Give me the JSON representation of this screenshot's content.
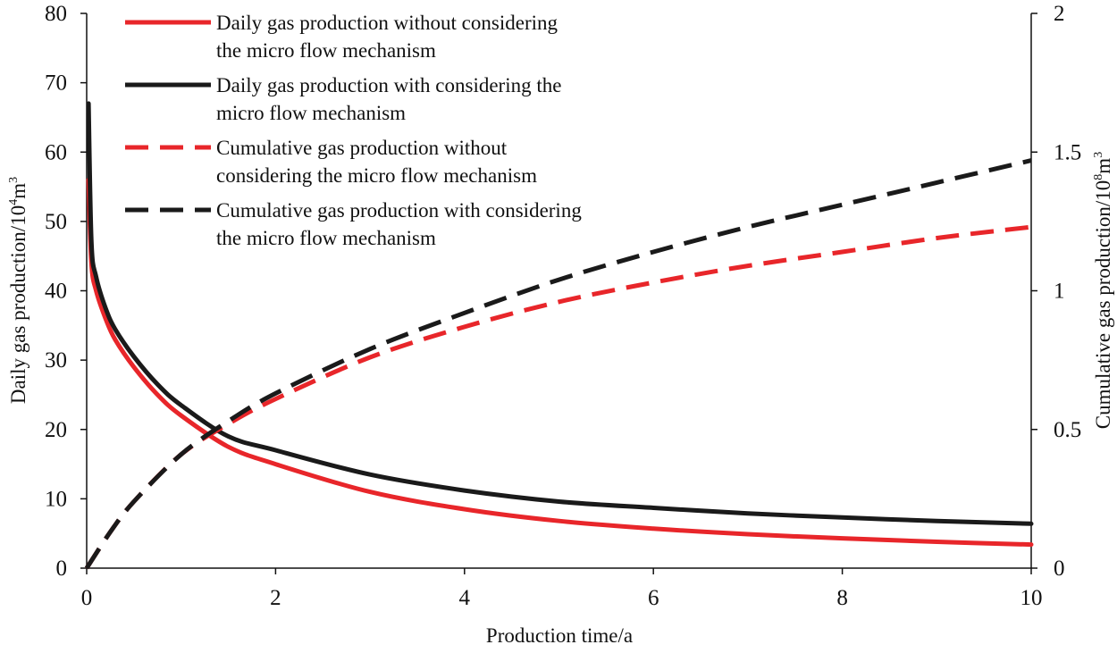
{
  "chart_data": {
    "type": "line",
    "title": "",
    "xlabel": "Production time/a",
    "ylabel": {
      "prefix": "Daily gas production/10",
      "sup1": "4",
      "mid": "m",
      "sup2": "3"
    },
    "y2label": {
      "prefix": "Cumulative gas production/10",
      "sup1": "8",
      "mid": "m",
      "sup2": "3"
    },
    "xlim": [
      0,
      10
    ],
    "ylim": [
      0,
      80
    ],
    "y2lim": [
      0,
      2
    ],
    "x_ticks": [
      "0",
      "2",
      "4",
      "6",
      "8",
      "10"
    ],
    "y_ticks": [
      "0",
      "10",
      "20",
      "30",
      "40",
      "50",
      "60",
      "70",
      "80"
    ],
    "y2_ticks": [
      "0",
      "0.5",
      "1",
      "1.5",
      "2"
    ],
    "legend_position": "top-left",
    "series": [
      {
        "name": "Daily gas production without considering the micro flow mechanism",
        "legend_lines": [
          "Daily gas production without considering",
          "the micro flow mechanism"
        ],
        "axis": "left",
        "color": "#e8262a",
        "dash": "solid",
        "x": [
          0.02,
          0.05,
          0.1,
          0.2,
          0.3,
          0.5,
          0.75,
          1.0,
          1.5,
          2.0,
          3.0,
          4.0,
          5.0,
          6.0,
          7.0,
          8.0,
          9.0,
          10.0
        ],
        "y": [
          56,
          44,
          40,
          36,
          33,
          29,
          25,
          22,
          17.5,
          15,
          11,
          8.5,
          6.8,
          5.7,
          4.9,
          4.3,
          3.8,
          3.4
        ]
      },
      {
        "name": "Daily gas production with considering the micro flow mechanism",
        "legend_lines": [
          "Daily gas production with considering the",
          "micro flow mechanism"
        ],
        "axis": "left",
        "color": "#1a1a1a",
        "dash": "solid",
        "x": [
          0.02,
          0.05,
          0.1,
          0.2,
          0.3,
          0.5,
          0.75,
          1.0,
          1.5,
          2.0,
          3.0,
          4.0,
          5.0,
          6.0,
          7.0,
          8.0,
          9.0,
          10.0
        ],
        "y": [
          67,
          47,
          42,
          37.5,
          34.5,
          30.5,
          26.5,
          23.5,
          19,
          17,
          13.5,
          11.2,
          9.6,
          8.7,
          7.9,
          7.3,
          6.8,
          6.4
        ]
      },
      {
        "name": "Cumulative gas production without considering the micro flow mechanism",
        "legend_lines": [
          "Cumulative gas production without",
          "considering the micro flow mechanism"
        ],
        "axis": "right",
        "color": "#e8262a",
        "dash": "dashed",
        "x": [
          0,
          0.25,
          0.5,
          1.0,
          1.5,
          2.0,
          3.0,
          4.0,
          5.0,
          6.0,
          7.0,
          8.0,
          9.0,
          10.0
        ],
        "y": [
          0,
          0.13,
          0.24,
          0.41,
          0.52,
          0.61,
          0.76,
          0.87,
          0.96,
          1.03,
          1.09,
          1.14,
          1.19,
          1.23
        ]
      },
      {
        "name": "Cumulative gas production with considering the micro flow mechanism",
        "legend_lines": [
          "Cumulative gas production with considering",
          "the micro flow mechanism"
        ],
        "axis": "right",
        "color": "#1a1a1a",
        "dash": "dashed",
        "x": [
          0,
          0.25,
          0.5,
          1.0,
          1.5,
          2.0,
          3.0,
          4.0,
          5.0,
          6.0,
          7.0,
          8.0,
          9.0,
          10.0
        ],
        "y": [
          0,
          0.13,
          0.24,
          0.41,
          0.53,
          0.63,
          0.79,
          0.92,
          1.04,
          1.14,
          1.23,
          1.31,
          1.39,
          1.47
        ]
      }
    ]
  }
}
